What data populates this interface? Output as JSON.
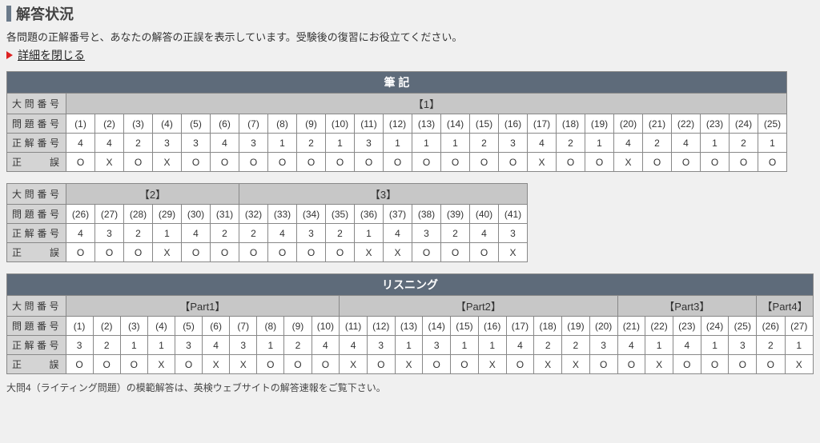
{
  "header": {
    "title": "解答状況",
    "description": "各問題の正解番号と、あなたの解答の正誤を表示しています。受験後の復習にお役立てください。",
    "toggle_label": "詳細を閉じる"
  },
  "row_labels": {
    "daimon": "大問番号",
    "mondai": "問題番号",
    "seikai": "正解番号",
    "seigo": "正　誤"
  },
  "tables": [
    {
      "category": "筆 記",
      "groups": [
        {
          "label": "【1】",
          "questions": [
            {
              "q": "(1)",
              "a": "4",
              "r": "O"
            },
            {
              "q": "(2)",
              "a": "4",
              "r": "X"
            },
            {
              "q": "(3)",
              "a": "2",
              "r": "O"
            },
            {
              "q": "(4)",
              "a": "3",
              "r": "X"
            },
            {
              "q": "(5)",
              "a": "3",
              "r": "O"
            },
            {
              "q": "(6)",
              "a": "4",
              "r": "O"
            },
            {
              "q": "(7)",
              "a": "3",
              "r": "O"
            },
            {
              "q": "(8)",
              "a": "1",
              "r": "O"
            },
            {
              "q": "(9)",
              "a": "2",
              "r": "O"
            },
            {
              "q": "(10)",
              "a": "1",
              "r": "O"
            },
            {
              "q": "(11)",
              "a": "3",
              "r": "O"
            },
            {
              "q": "(12)",
              "a": "1",
              "r": "O"
            },
            {
              "q": "(13)",
              "a": "1",
              "r": "O"
            },
            {
              "q": "(14)",
              "a": "1",
              "r": "O"
            },
            {
              "q": "(15)",
              "a": "2",
              "r": "O"
            },
            {
              "q": "(16)",
              "a": "3",
              "r": "O"
            },
            {
              "q": "(17)",
              "a": "4",
              "r": "X"
            },
            {
              "q": "(18)",
              "a": "2",
              "r": "O"
            },
            {
              "q": "(19)",
              "a": "1",
              "r": "O"
            },
            {
              "q": "(20)",
              "a": "4",
              "r": "X"
            },
            {
              "q": "(21)",
              "a": "2",
              "r": "O"
            },
            {
              "q": "(22)",
              "a": "4",
              "r": "O"
            },
            {
              "q": "(23)",
              "a": "1",
              "r": "O"
            },
            {
              "q": "(24)",
              "a": "2",
              "r": "O"
            },
            {
              "q": "(25)",
              "a": "1",
              "r": "O"
            }
          ]
        }
      ]
    },
    {
      "category": null,
      "groups": [
        {
          "label": "【2】",
          "questions": [
            {
              "q": "(26)",
              "a": "4",
              "r": "O"
            },
            {
              "q": "(27)",
              "a": "3",
              "r": "O"
            },
            {
              "q": "(28)",
              "a": "2",
              "r": "O"
            },
            {
              "q": "(29)",
              "a": "1",
              "r": "X"
            },
            {
              "q": "(30)",
              "a": "4",
              "r": "O"
            },
            {
              "q": "(31)",
              "a": "2",
              "r": "O"
            }
          ]
        },
        {
          "label": "【3】",
          "questions": [
            {
              "q": "(32)",
              "a": "2",
              "r": "O"
            },
            {
              "q": "(33)",
              "a": "4",
              "r": "O"
            },
            {
              "q": "(34)",
              "a": "3",
              "r": "O"
            },
            {
              "q": "(35)",
              "a": "2",
              "r": "O"
            },
            {
              "q": "(36)",
              "a": "1",
              "r": "X"
            },
            {
              "q": "(37)",
              "a": "4",
              "r": "X"
            },
            {
              "q": "(38)",
              "a": "3",
              "r": "O"
            },
            {
              "q": "(39)",
              "a": "2",
              "r": "O"
            },
            {
              "q": "(40)",
              "a": "4",
              "r": "O"
            },
            {
              "q": "(41)",
              "a": "3",
              "r": "X"
            }
          ]
        }
      ]
    },
    {
      "category": "リスニング",
      "groups": [
        {
          "label": "【Part1】",
          "questions": [
            {
              "q": "(1)",
              "a": "3",
              "r": "O"
            },
            {
              "q": "(2)",
              "a": "2",
              "r": "O"
            },
            {
              "q": "(3)",
              "a": "1",
              "r": "O"
            },
            {
              "q": "(4)",
              "a": "1",
              "r": "X"
            },
            {
              "q": "(5)",
              "a": "3",
              "r": "O"
            },
            {
              "q": "(6)",
              "a": "4",
              "r": "X"
            },
            {
              "q": "(7)",
              "a": "3",
              "r": "X"
            },
            {
              "q": "(8)",
              "a": "1",
              "r": "O"
            },
            {
              "q": "(9)",
              "a": "2",
              "r": "O"
            },
            {
              "q": "(10)",
              "a": "4",
              "r": "O"
            }
          ]
        },
        {
          "label": "【Part2】",
          "questions": [
            {
              "q": "(11)",
              "a": "4",
              "r": "X"
            },
            {
              "q": "(12)",
              "a": "3",
              "r": "O"
            },
            {
              "q": "(13)",
              "a": "1",
              "r": "X"
            },
            {
              "q": "(14)",
              "a": "3",
              "r": "O"
            },
            {
              "q": "(15)",
              "a": "1",
              "r": "O"
            },
            {
              "q": "(16)",
              "a": "1",
              "r": "X"
            },
            {
              "q": "(17)",
              "a": "4",
              "r": "O"
            },
            {
              "q": "(18)",
              "a": "2",
              "r": "X"
            },
            {
              "q": "(19)",
              "a": "2",
              "r": "X"
            },
            {
              "q": "(20)",
              "a": "3",
              "r": "O"
            }
          ]
        },
        {
          "label": "【Part3】",
          "questions": [
            {
              "q": "(21)",
              "a": "4",
              "r": "O"
            },
            {
              "q": "(22)",
              "a": "1",
              "r": "X"
            },
            {
              "q": "(23)",
              "a": "4",
              "r": "O"
            },
            {
              "q": "(24)",
              "a": "1",
              "r": "O"
            },
            {
              "q": "(25)",
              "a": "3",
              "r": "O"
            }
          ]
        },
        {
          "label": "【Part4】",
          "questions": [
            {
              "q": "(26)",
              "a": "2",
              "r": "O"
            },
            {
              "q": "(27)",
              "a": "1",
              "r": "X"
            }
          ]
        }
      ]
    }
  ],
  "footnote": "大問4（ライティング問題）の模範解答は、英検ウェブサイトの解答速報をご覧下さい。",
  "colors": {
    "accent_bar": "#6b7a8a",
    "category_head_bg": "#5e6b7a",
    "group_head_bg": "#c7c7c7",
    "row_head_bg": "#d4d4d4",
    "border": "#888888",
    "arrow": "#d22"
  }
}
